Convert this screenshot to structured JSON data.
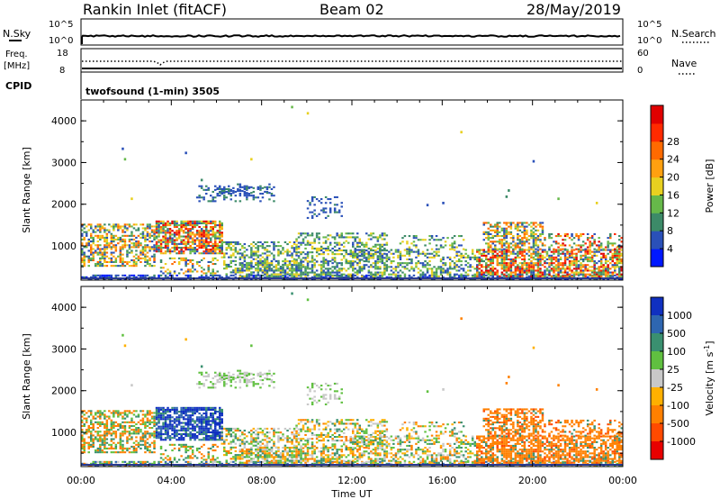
{
  "header": {
    "title": "Rankin Inlet (fitACF)",
    "beam": "Beam 02",
    "date": "28/May/2019"
  },
  "nsky_panel": {
    "left_label": "N.Sky",
    "left_ticks": [
      "10^5",
      "10^0"
    ],
    "right_label": "N.Search",
    "right_ticks": [
      "10^5",
      "10^0"
    ]
  },
  "freq_panel": {
    "left_label_1": "Freq.",
    "left_label_2": "[MHz]",
    "left_ticks": [
      "18",
      "8"
    ],
    "right_label": "Nave",
    "right_ticks": [
      "60",
      "0"
    ]
  },
  "cpid_panel": {
    "label": "CPID",
    "text": "twofsound (1-min) 3505"
  },
  "x_axis": {
    "ticks": [
      "00:00",
      "04:00",
      "08:00",
      "12:00",
      "16:00",
      "20:00",
      "00:00"
    ],
    "label": "Time UT"
  },
  "chart_data": [
    {
      "type": "heatmap",
      "panel": "power",
      "ylabel": "Slant Range [km]",
      "yticks": [
        "1000",
        "2000",
        "3000",
        "4000"
      ],
      "ylim": [
        180,
        4500
      ],
      "xlim_hours": [
        0,
        24
      ],
      "colorbar": {
        "label": "Power [dB]",
        "ticks": [
          "4",
          "8",
          "12",
          "16",
          "20",
          "24",
          "28"
        ],
        "colors": [
          "#0018ff",
          "#2a50b8",
          "#3c8a68",
          "#66b84a",
          "#e8d020",
          "#ffa010",
          "#ff6a00",
          "#ff2a00",
          "#e00000"
        ]
      }
    },
    {
      "type": "heatmap",
      "panel": "velocity",
      "ylabel": "Slant Range [km]",
      "yticks": [
        "1000",
        "2000",
        "3000",
        "4000"
      ],
      "ylim": [
        180,
        4500
      ],
      "xlim_hours": [
        0,
        24
      ],
      "colorbar": {
        "label": "Velocity [m s",
        "label_sup": "-1",
        "label_end": "]",
        "ticks": [
          "1000",
          "500",
          "100",
          "25",
          "-25",
          "-100",
          "-500",
          "-1000"
        ],
        "colors": [
          "#1030c0",
          "#2e66b0",
          "#3a9070",
          "#60c040",
          "#c8c8c8",
          "#ffb000",
          "#ff8000",
          "#ff4a00",
          "#e80000"
        ]
      }
    }
  ]
}
